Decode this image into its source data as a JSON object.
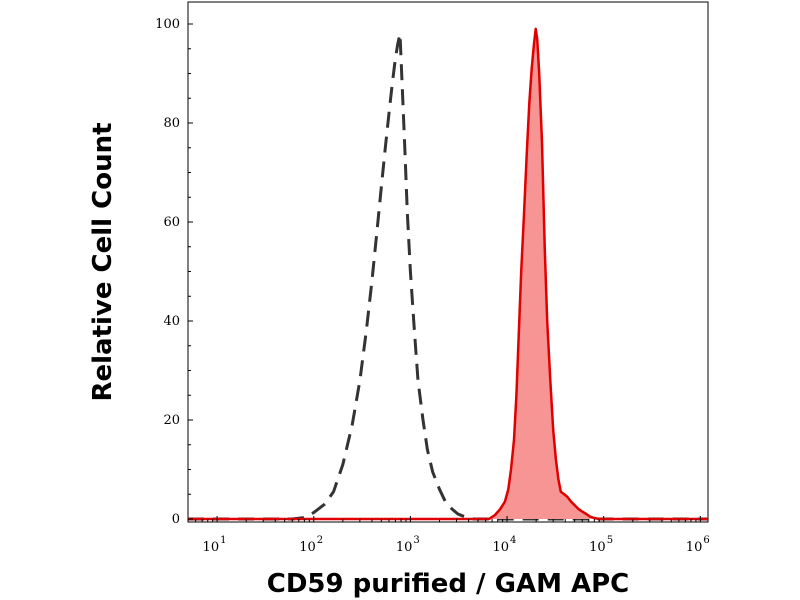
{
  "chart_data": {
    "type": "area",
    "xlabel": "CD59 purified / GAM APC",
    "ylabel": "Relative Cell Count",
    "xscale": "log",
    "xlim": [
      5,
      1200000
    ],
    "ylim": [
      0,
      100
    ],
    "grid": false,
    "legend": "none",
    "y_ticks": [
      0,
      20,
      40,
      60,
      80,
      100
    ],
    "x_ticks": [
      {
        "value": 10,
        "base": "10",
        "exp": "1"
      },
      {
        "value": 100,
        "base": "10",
        "exp": "2"
      },
      {
        "value": 1000,
        "base": "10",
        "exp": "3"
      },
      {
        "value": 10000,
        "base": "10",
        "exp": "4"
      },
      {
        "value": 100000,
        "base": "10",
        "exp": "5"
      },
      {
        "value": 1000000,
        "base": "10",
        "exp": "6"
      }
    ],
    "series": [
      {
        "style": "dashed",
        "color": "#333333",
        "x": [
          5,
          60,
          80,
          100,
          130,
          160,
          200,
          250,
          300,
          350,
          400,
          450,
          500,
          550,
          600,
          650,
          700,
          740,
          780,
          820,
          870,
          930,
          1000,
          1100,
          1200,
          1350,
          1500,
          1700,
          2000,
          2300,
          2700,
          3100,
          3600,
          4500,
          1200000
        ],
        "values": [
          0,
          0,
          0.3,
          1.3,
          3,
          5.5,
          11,
          19,
          28,
          38,
          48,
          58,
          67,
          75,
          82,
          88,
          93,
          96,
          98,
          88,
          76,
          62,
          50,
          38,
          28,
          20,
          14,
          9.5,
          6,
          3.5,
          2,
          1,
          0.5,
          0,
          0
        ]
      },
      {
        "style": "filled",
        "color": "#e00000",
        "fill": "#f79494",
        "x": [
          5,
          6500,
          7500,
          8500,
          9500,
          10300,
          11000,
          11800,
          12500,
          13200,
          14000,
          15000,
          16000,
          17000,
          18000,
          19000,
          19800,
          20500,
          21500,
          23000,
          24500,
          26000,
          28000,
          30000,
          32000,
          34000,
          36000,
          39000,
          42000,
          46000,
          50000,
          55000,
          60000,
          66000,
          72000,
          80000,
          90000,
          1200000
        ],
        "values": [
          0,
          0,
          0.8,
          2,
          3.5,
          6,
          10,
          16,
          25,
          37,
          50,
          62,
          74,
          84,
          91,
          96,
          99,
          97,
          90,
          76,
          55,
          40,
          28,
          18,
          12,
          8,
          5.5,
          5,
          4.5,
          3.5,
          2.8,
          2,
          1.5,
          1,
          0.5,
          0.2,
          0,
          0
        ]
      }
    ]
  }
}
